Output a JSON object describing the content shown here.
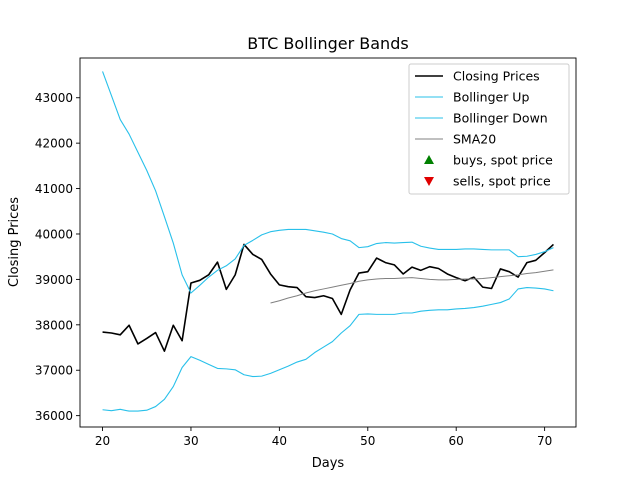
{
  "chart_data": {
    "type": "line",
    "title": "BTC Bollinger Bands",
    "xlabel": "Days",
    "ylabel": "Closing Prices",
    "xlim": [
      17.45,
      73.55
    ],
    "ylim": [
      35750,
      43875
    ],
    "xticks": [
      20,
      30,
      40,
      50,
      60,
      70
    ],
    "yticks": [
      36000,
      37000,
      38000,
      39000,
      40000,
      41000,
      42000,
      43000
    ],
    "grid": false,
    "legend_position": "top-right",
    "series": [
      {
        "name": "Closing Prices",
        "color": "#000000",
        "x": [
          20,
          21,
          22,
          23,
          24,
          25,
          26,
          27,
          28,
          29,
          30,
          31,
          32,
          33,
          34,
          35,
          36,
          37,
          38,
          39,
          40,
          41,
          42,
          43,
          44,
          45,
          46,
          47,
          48,
          49,
          50,
          51,
          52,
          53,
          54,
          55,
          56,
          57,
          58,
          59,
          60,
          61,
          62,
          63,
          64,
          65,
          66,
          67,
          68,
          69,
          70,
          71
        ],
        "values": [
          37840,
          37820,
          37780,
          37990,
          37580,
          37700,
          37830,
          37420,
          37990,
          37650,
          38920,
          38980,
          39100,
          39380,
          38780,
          39100,
          39770,
          39550,
          39440,
          39120,
          38880,
          38840,
          38820,
          38620,
          38600,
          38640,
          38580,
          38230,
          38770,
          39140,
          39170,
          39470,
          39370,
          39320,
          39120,
          39270,
          39200,
          39280,
          39240,
          39120,
          39040,
          38970,
          39050,
          38830,
          38800,
          39230,
          39170,
          39050,
          39370,
          39420,
          39590,
          39770
        ]
      },
      {
        "name": "Bollinger Up",
        "color": "#28c0ea",
        "x": [
          20,
          21,
          22,
          23,
          24,
          25,
          26,
          27,
          28,
          29,
          30,
          31,
          32,
          33,
          34,
          35,
          36,
          37,
          38,
          39,
          40,
          41,
          42,
          43,
          44,
          45,
          46,
          47,
          48,
          49,
          50,
          51,
          52,
          53,
          54,
          55,
          56,
          57,
          58,
          59,
          60,
          61,
          62,
          63,
          64,
          65,
          66,
          67,
          68,
          69,
          70,
          71
        ],
        "values": [
          43580,
          43050,
          42520,
          42200,
          41800,
          41400,
          40950,
          40380,
          39800,
          39100,
          38700,
          38870,
          39050,
          39200,
          39300,
          39450,
          39750,
          39860,
          39980,
          40050,
          40080,
          40100,
          40100,
          40100,
          40070,
          40040,
          40000,
          39900,
          39850,
          39700,
          39720,
          39790,
          39810,
          39800,
          39810,
          39820,
          39730,
          39690,
          39660,
          39660,
          39660,
          39670,
          39670,
          39660,
          39650,
          39650,
          39650,
          39500,
          39510,
          39550,
          39610,
          39700
        ]
      },
      {
        "name": "Bollinger Down",
        "color": "#28c0ea",
        "x": [
          20,
          21,
          22,
          23,
          24,
          25,
          26,
          27,
          28,
          29,
          30,
          31,
          32,
          33,
          34,
          35,
          36,
          37,
          38,
          39,
          40,
          41,
          42,
          43,
          44,
          45,
          46,
          47,
          48,
          49,
          50,
          51,
          52,
          53,
          54,
          55,
          56,
          57,
          58,
          59,
          60,
          61,
          62,
          63,
          64,
          65,
          66,
          67,
          68,
          69,
          70,
          71
        ],
        "values": [
          36130,
          36110,
          36140,
          36100,
          36100,
          36120,
          36200,
          36360,
          36640,
          37060,
          37300,
          37220,
          37130,
          37040,
          37030,
          37010,
          36900,
          36860,
          36870,
          36930,
          37010,
          37090,
          37180,
          37240,
          37390,
          37510,
          37630,
          37820,
          37980,
          38230,
          38240,
          38230,
          38230,
          38230,
          38260,
          38260,
          38300,
          38320,
          38330,
          38330,
          38350,
          38360,
          38380,
          38410,
          38450,
          38490,
          38570,
          38790,
          38820,
          38810,
          38790,
          38750
        ]
      },
      {
        "name": "SMA20",
        "color": "#808080",
        "x": [
          39,
          40,
          41,
          42,
          43,
          44,
          45,
          46,
          47,
          48,
          49,
          50,
          51,
          52,
          53,
          54,
          55,
          56,
          57,
          58,
          59,
          60,
          61,
          62,
          63,
          64,
          65,
          66,
          67,
          68,
          69,
          70,
          71
        ],
        "values": [
          38480,
          38530,
          38590,
          38640,
          38700,
          38750,
          38790,
          38830,
          38870,
          38910,
          38960,
          38990,
          39010,
          39020,
          39020,
          39030,
          39040,
          39020,
          39000,
          38990,
          38990,
          39000,
          39010,
          39010,
          39020,
          39040,
          39060,
          39080,
          39100,
          39130,
          39150,
          39180,
          39210
        ]
      },
      {
        "name": "buys, spot price",
        "color": "#008000",
        "marker": "triangle-up",
        "x": [],
        "values": []
      },
      {
        "name": "sells, spot price",
        "color": "#e00000",
        "marker": "triangle-down",
        "x": [],
        "values": []
      }
    ]
  }
}
